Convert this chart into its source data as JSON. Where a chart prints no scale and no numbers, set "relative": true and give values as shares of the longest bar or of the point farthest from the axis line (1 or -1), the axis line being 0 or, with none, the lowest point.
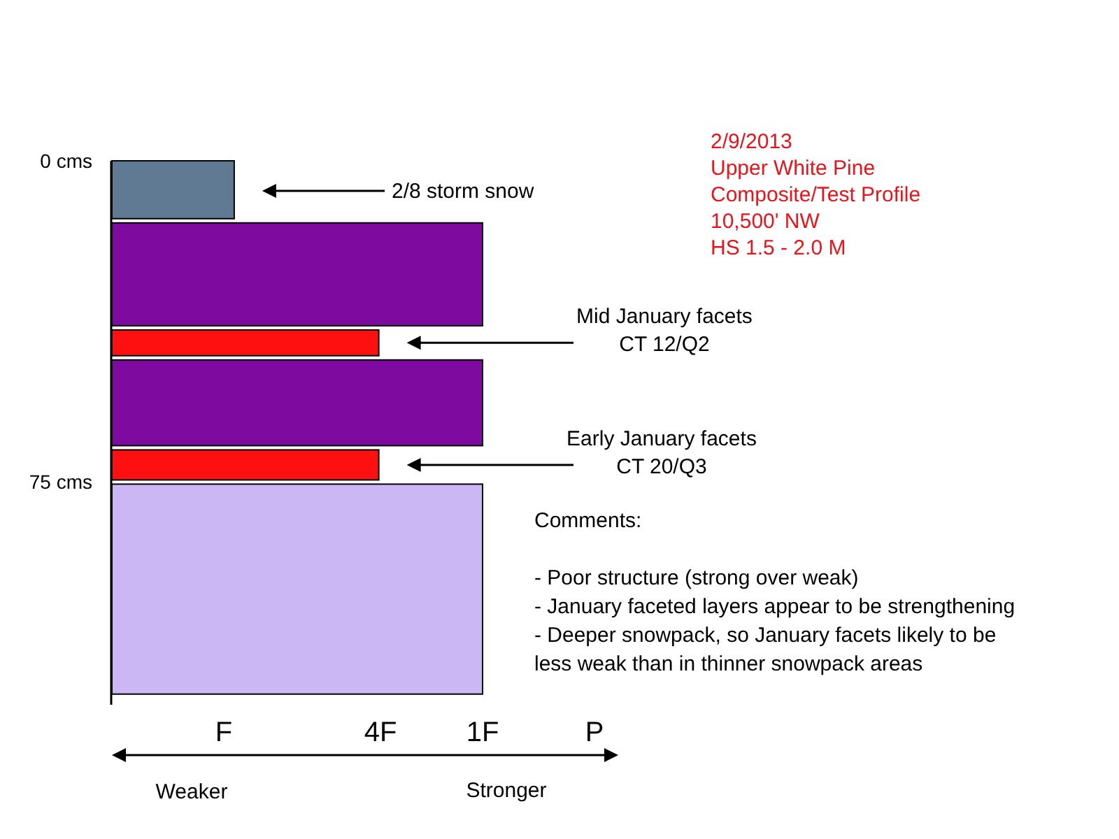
{
  "chart_data": {
    "type": "bar",
    "orientation": "horizontal",
    "relative": true,
    "title": "2/9/2013",
    "subtitle": "Upper White Pine\nComposite/Test Profile\n10,500' NW\nHS 1.5 - 2.0 M",
    "x": [
      7,
      26.5,
      42.5,
      56.5,
      71,
      100
    ],
    "values": [
      0.33,
      1,
      0.72,
      1,
      0.72,
      1
    ],
    "colors": [
      "#5f7a92",
      "#7f0aa0",
      "#ff1010",
      "#7f0aa0",
      "#ff1010",
      "#cbb7f3"
    ],
    "ylim": [
      127,
      0
    ],
    "yticks": [
      {
        "value": 0,
        "label": "0 cms"
      },
      {
        "value": 75,
        "label": "75 cms"
      }
    ],
    "annotations": [
      "2/8 storm snow",
      "Mid January facets\nCT 12/Q2",
      "Early January facets\nCT 20/Q3",
      "Comments:\n\n- Poor structure (strong over weak)\n- January faceted layers appear to be strengthening\n- Deeper snowpack, so January facets likely to be\nless weak than in thinner snowpack areas",
      "Weaker",
      "Stronger",
      "F",
      "4F",
      "1F",
      "P"
    ]
  }
}
